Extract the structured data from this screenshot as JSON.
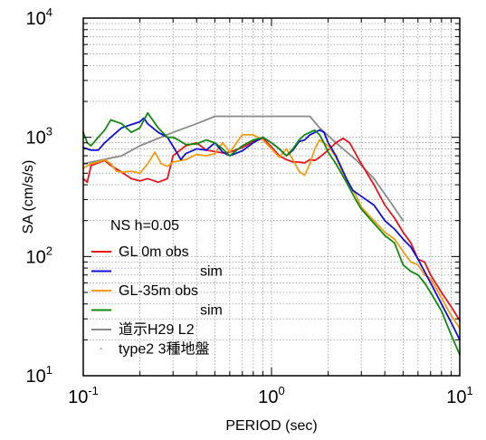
{
  "chart_data": {
    "type": "line",
    "xscale": "log",
    "yscale": "log",
    "xlim": [
      0.1,
      10
    ],
    "ylim": [
      10,
      10000
    ],
    "grid": true,
    "xlabel": "PERIOD (sec)",
    "ylabel": "SA (cm/s/s)",
    "xticks": [
      {
        "value": 0.1,
        "base": "10",
        "exp": "-1"
      },
      {
        "value": 1,
        "base": "10",
        "exp": "0"
      },
      {
        "value": 10,
        "base": "10",
        "exp": "1"
      }
    ],
    "yticks": [
      {
        "value": 10,
        "base": "10",
        "exp": "1"
      },
      {
        "value": 100,
        "base": "10",
        "exp": "2"
      },
      {
        "value": 1000,
        "base": "10",
        "exp": "3"
      },
      {
        "value": 10000,
        "base": "10",
        "exp": "4"
      }
    ],
    "legend_position": "bottom-left",
    "legend_title": "NS h=0.05",
    "series": [
      {
        "name": "GL 0m obs",
        "color": "#e8141b",
        "points": [
          [
            0.1,
            450
          ],
          [
            0.105,
            420
          ],
          [
            0.11,
            580
          ],
          [
            0.12,
            610
          ],
          [
            0.13,
            640
          ],
          [
            0.14,
            580
          ],
          [
            0.16,
            510
          ],
          [
            0.18,
            450
          ],
          [
            0.2,
            430
          ],
          [
            0.22,
            450
          ],
          [
            0.25,
            420
          ],
          [
            0.28,
            450
          ],
          [
            0.3,
            700
          ],
          [
            0.35,
            850
          ],
          [
            0.4,
            900
          ],
          [
            0.45,
            780
          ],
          [
            0.5,
            760
          ],
          [
            0.55,
            740
          ],
          [
            0.6,
            750
          ],
          [
            0.7,
            820
          ],
          [
            0.8,
            920
          ],
          [
            0.9,
            980
          ],
          [
            1.0,
            830
          ],
          [
            1.1,
            700
          ],
          [
            1.2,
            650
          ],
          [
            1.3,
            620
          ],
          [
            1.4,
            620
          ],
          [
            1.5,
            610
          ],
          [
            1.6,
            650
          ],
          [
            1.7,
            640
          ],
          [
            1.8,
            680
          ],
          [
            2.0,
            780
          ],
          [
            2.2,
            900
          ],
          [
            2.4,
            980
          ],
          [
            2.6,
            900
          ],
          [
            3.0,
            600
          ],
          [
            3.5,
            400
          ],
          [
            4.0,
            270
          ],
          [
            4.5,
            210
          ],
          [
            5.0,
            160
          ],
          [
            5.5,
            130
          ],
          [
            6.0,
            95
          ],
          [
            6.5,
            90
          ],
          [
            7.0,
            70
          ],
          [
            8.0,
            50
          ],
          [
            9.0,
            38
          ],
          [
            10,
            29
          ]
        ]
      },
      {
        "name": "sim",
        "color": "#1010d8",
        "points": [
          [
            0.1,
            820
          ],
          [
            0.11,
            780
          ],
          [
            0.12,
            780
          ],
          [
            0.13,
            900
          ],
          [
            0.14,
            1000
          ],
          [
            0.15,
            1100
          ],
          [
            0.16,
            1200
          ],
          [
            0.18,
            1280
          ],
          [
            0.2,
            1350
          ],
          [
            0.21,
            1450
          ],
          [
            0.22,
            1300
          ],
          [
            0.25,
            1100
          ],
          [
            0.28,
            1000
          ],
          [
            0.3,
            840
          ],
          [
            0.33,
            650
          ],
          [
            0.35,
            730
          ],
          [
            0.4,
            800
          ],
          [
            0.45,
            780
          ],
          [
            0.5,
            900
          ],
          [
            0.55,
            750
          ],
          [
            0.6,
            700
          ],
          [
            0.7,
            770
          ],
          [
            0.8,
            900
          ],
          [
            0.9,
            1000
          ],
          [
            1.0,
            900
          ],
          [
            1.1,
            800
          ],
          [
            1.2,
            700
          ],
          [
            1.3,
            780
          ],
          [
            1.4,
            920
          ],
          [
            1.5,
            950
          ],
          [
            1.6,
            1050
          ],
          [
            1.8,
            1150
          ],
          [
            1.9,
            1100
          ],
          [
            2.0,
            900
          ],
          [
            2.2,
            700
          ],
          [
            2.5,
            450
          ],
          [
            2.7,
            360
          ],
          [
            3.0,
            320
          ],
          [
            3.5,
            270
          ],
          [
            4.0,
            200
          ],
          [
            4.5,
            170
          ],
          [
            5.0,
            140
          ],
          [
            5.5,
            120
          ],
          [
            6.0,
            95
          ],
          [
            7.0,
            60
          ],
          [
            8.0,
            40
          ],
          [
            9.0,
            28
          ],
          [
            10,
            20
          ]
        ]
      },
      {
        "name": "GL-35m obs",
        "color": "#f49b14",
        "points": [
          [
            0.1,
            550
          ],
          [
            0.11,
            600
          ],
          [
            0.12,
            620
          ],
          [
            0.13,
            650
          ],
          [
            0.14,
            600
          ],
          [
            0.15,
            520
          ],
          [
            0.16,
            510
          ],
          [
            0.18,
            520
          ],
          [
            0.2,
            500
          ],
          [
            0.22,
            600
          ],
          [
            0.24,
            750
          ],
          [
            0.26,
            600
          ],
          [
            0.28,
            570
          ],
          [
            0.3,
            620
          ],
          [
            0.35,
            650
          ],
          [
            0.4,
            720
          ],
          [
            0.45,
            700
          ],
          [
            0.5,
            730
          ],
          [
            0.55,
            900
          ],
          [
            0.6,
            750
          ],
          [
            0.7,
            1050
          ],
          [
            0.8,
            1050
          ],
          [
            0.9,
            950
          ],
          [
            1.0,
            800
          ],
          [
            1.1,
            680
          ],
          [
            1.2,
            800
          ],
          [
            1.3,
            650
          ],
          [
            1.4,
            520
          ],
          [
            1.5,
            480
          ],
          [
            1.6,
            600
          ],
          [
            1.7,
            800
          ],
          [
            1.8,
            950
          ],
          [
            2.0,
            850
          ],
          [
            2.2,
            680
          ],
          [
            2.5,
            430
          ],
          [
            2.8,
            330
          ],
          [
            3.0,
            260
          ],
          [
            3.5,
            200
          ],
          [
            4.0,
            160
          ],
          [
            4.5,
            140
          ],
          [
            5.0,
            110
          ],
          [
            5.5,
            90
          ],
          [
            6.0,
            85
          ],
          [
            6.5,
            70
          ],
          [
            7.0,
            65
          ],
          [
            8.0,
            45
          ],
          [
            9.0,
            32
          ],
          [
            10,
            25
          ]
        ]
      },
      {
        "name": "sim",
        "color": "#128a12",
        "points": [
          [
            0.1,
            1100
          ],
          [
            0.105,
            900
          ],
          [
            0.11,
            850
          ],
          [
            0.12,
            1000
          ],
          [
            0.13,
            1150
          ],
          [
            0.14,
            1400
          ],
          [
            0.16,
            1300
          ],
          [
            0.18,
            1100
          ],
          [
            0.2,
            1200
          ],
          [
            0.22,
            1600
          ],
          [
            0.25,
            1200
          ],
          [
            0.28,
            1000
          ],
          [
            0.3,
            1000
          ],
          [
            0.32,
            950
          ],
          [
            0.35,
            870
          ],
          [
            0.4,
            880
          ],
          [
            0.45,
            950
          ],
          [
            0.5,
            900
          ],
          [
            0.55,
            800
          ],
          [
            0.6,
            700
          ],
          [
            0.7,
            850
          ],
          [
            0.8,
            950
          ],
          [
            0.9,
            1000
          ],
          [
            1.0,
            900
          ],
          [
            1.1,
            800
          ],
          [
            1.2,
            700
          ],
          [
            1.3,
            800
          ],
          [
            1.4,
            950
          ],
          [
            1.5,
            1050
          ],
          [
            1.6,
            1100
          ],
          [
            1.7,
            1150
          ],
          [
            1.8,
            1050
          ],
          [
            1.9,
            900
          ],
          [
            2.0,
            750
          ],
          [
            2.2,
            600
          ],
          [
            2.5,
            420
          ],
          [
            2.8,
            300
          ],
          [
            3.0,
            250
          ],
          [
            3.5,
            190
          ],
          [
            4.0,
            150
          ],
          [
            4.5,
            130
          ],
          [
            5.0,
            85
          ],
          [
            5.5,
            75
          ],
          [
            6.0,
            70
          ],
          [
            6.5,
            60
          ],
          [
            7.0,
            50
          ],
          [
            8.0,
            35
          ],
          [
            9.0,
            22
          ],
          [
            10,
            15
          ]
        ]
      },
      {
        "name": "道示H29 L2",
        "color": "#8a8a8a",
        "points": [
          [
            0.1,
            600
          ],
          [
            0.16,
            700
          ],
          [
            0.2,
            850
          ],
          [
            0.3,
            1100
          ],
          [
            0.4,
            1300
          ],
          [
            0.5,
            1500
          ],
          [
            1.6,
            1500
          ],
          [
            1.8,
            1200
          ],
          [
            2.2,
            900
          ],
          [
            2.8,
            650
          ],
          [
            3.5,
            450
          ],
          [
            4.2,
            300
          ],
          [
            5.0,
            200
          ]
        ]
      },
      {
        "name": "type2 3種地盤",
        "color": "#8a8a8a",
        "points": []
      }
    ]
  }
}
